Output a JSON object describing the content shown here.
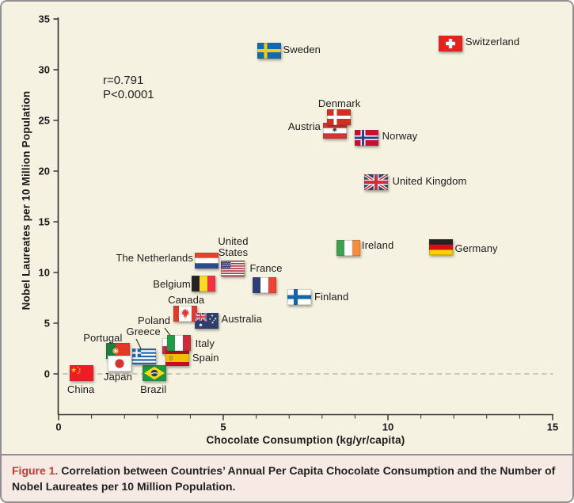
{
  "figure": {
    "caption_label": "Figure 1.",
    "caption_text": " Correlation between Countries’ Annual Per Capita Chocolate Consumption and the Number of Nobel Laureates per 10 Million Population."
  },
  "annotation": {
    "r": "r=0.791",
    "p": "P<0.0001"
  },
  "colors": {
    "plot_background": "#f5f2e1",
    "caption_background": "#f7e9e4",
    "border": "#8f8f8f",
    "axis": "#2e2e2e",
    "figure_label_red": "#d6352f",
    "zero_line": "#b5b0a3"
  },
  "chart_data": {
    "type": "scatter",
    "title": "",
    "xlabel": "Chocolate Consumption (kg/yr/capita)",
    "ylabel": "Nobel Laureates per 10 Million Population",
    "xlim": [
      0,
      15
    ],
    "ylim": [
      0,
      35
    ],
    "x_major_ticks": [
      0,
      5,
      10,
      15
    ],
    "x_minor_step": 1,
    "y_ticks": [
      0,
      5,
      10,
      15,
      20,
      25,
      30,
      35
    ],
    "zero_line_dashed": true,
    "legend": "none",
    "grid": false,
    "points": [
      {
        "name": "Switzerland",
        "flag": "ch",
        "x": 11.9,
        "y": 32.6,
        "label": "Switzerland",
        "label_offset": [
          53,
          -2
        ]
      },
      {
        "name": "Sweden",
        "flag": "se",
        "x": 6.4,
        "y": 31.9,
        "label": "Sweden",
        "label_offset": [
          41,
          -1
        ]
      },
      {
        "name": "Denmark",
        "flag": "dk",
        "x": 8.5,
        "y": 25.3,
        "label": "Denmark",
        "label_offset": [
          1,
          -17
        ],
        "z": 3
      },
      {
        "name": "Austria",
        "flag": "at",
        "x": 8.4,
        "y": 24.0,
        "label": "Austria",
        "label_offset": [
          -39,
          -5
        ],
        "z": 2
      },
      {
        "name": "Norway",
        "flag": "no",
        "x": 9.35,
        "y": 23.3,
        "label": "Norway",
        "label_offset": [
          42,
          -2
        ]
      },
      {
        "name": "United Kingdom",
        "flag": "gb",
        "x": 9.65,
        "y": 18.9,
        "label": "United Kingdom",
        "label_offset": [
          67,
          -1
        ]
      },
      {
        "name": "Ireland",
        "flag": "ie",
        "x": 8.8,
        "y": 12.4,
        "label": "Ireland",
        "label_offset": [
          37,
          -3
        ]
      },
      {
        "name": "Germany",
        "flag": "de",
        "x": 11.6,
        "y": 12.5,
        "label": "Germany",
        "label_offset": [
          45,
          2
        ]
      },
      {
        "name": "The Netherlands",
        "flag": "nl",
        "x": 4.5,
        "y": 11.2,
        "label": "The Netherlands",
        "label_offset": [
          -66,
          -3
        ]
      },
      {
        "name": "United States",
        "flag": "us",
        "x": 5.3,
        "y": 10.4,
        "label": "United\nStates",
        "label_offset": [
          0,
          -27
        ]
      },
      {
        "name": "France",
        "flag": "fr",
        "x": 6.25,
        "y": 8.75,
        "label": "France",
        "label_offset": [
          2,
          -21
        ]
      },
      {
        "name": "Belgium",
        "flag": "be",
        "x": 4.4,
        "y": 8.9,
        "label": "Belgium",
        "label_offset": [
          -40,
          1
        ]
      },
      {
        "name": "Finland",
        "flag": "fi",
        "x": 7.3,
        "y": 7.6,
        "label": "Finland",
        "label_offset": [
          41,
          0
        ]
      },
      {
        "name": "Canada",
        "flag": "ca",
        "x": 3.85,
        "y": 5.95,
        "label": "Canada",
        "label_offset": [
          1,
          -17
        ]
      },
      {
        "name": "Australia",
        "flag": "au",
        "x": 4.5,
        "y": 5.2,
        "label": "Australia",
        "label_offset": [
          44,
          -2
        ],
        "z": 2
      },
      {
        "name": "Poland",
        "flag": "pl",
        "x": 3.5,
        "y": 2.75,
        "label": "Poland",
        "label_offset": [
          -25,
          -32
        ],
        "z": 2,
        "leader": [
          206,
          412,
          215,
          424
        ]
      },
      {
        "name": "Italy",
        "flag": "it",
        "x": 3.65,
        "y": 3.05,
        "label": "Italy",
        "label_offset": [
          33,
          1
        ],
        "z": 4
      },
      {
        "name": "Spain",
        "flag": "es",
        "x": 3.6,
        "y": 1.55,
        "label": "Spain",
        "label_offset": [
          36,
          0
        ],
        "z": 3
      },
      {
        "name": "Greece",
        "flag": "gr",
        "x": 2.6,
        "y": 1.7,
        "label": "Greece",
        "label_offset": [
          -1,
          -31
        ],
        "z": 2,
        "leader": [
          170,
          426,
          176,
          438
        ]
      },
      {
        "name": "Portugal",
        "flag": "pt",
        "x": 1.8,
        "y": 2.25,
        "label": "Portugal",
        "label_offset": [
          -19,
          -16
        ],
        "z": 2,
        "leader": [
          137,
          430,
          144,
          436
        ]
      },
      {
        "name": "Japan",
        "flag": "jp",
        "x": 1.85,
        "y": 1.0,
        "label": "Japan",
        "label_offset": [
          -2,
          17
        ],
        "z": 3
      },
      {
        "name": "China",
        "flag": "cn",
        "x": 0.7,
        "y": 0.06,
        "label": "China",
        "label_offset": [
          -1,
          21
        ]
      },
      {
        "name": "Brazil",
        "flag": "br",
        "x": 2.9,
        "y": 0.05,
        "label": "Brazil",
        "label_offset": [
          -1,
          21
        ]
      }
    ]
  }
}
